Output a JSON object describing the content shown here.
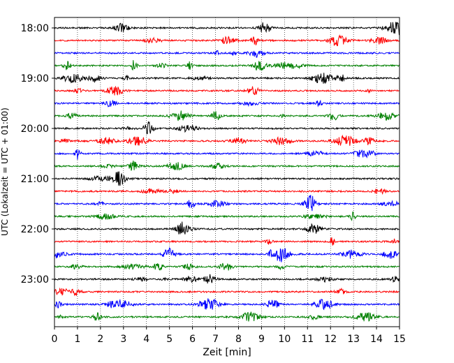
{
  "chart_data": {
    "type": "line",
    "title": "",
    "xlabel": "Zeit  [min]",
    "ylabel": "UTC (Lokalzeit = UTC + 01:00)",
    "xlim": [
      0,
      15
    ],
    "x_ticks": [
      "0",
      "1",
      "2",
      "3",
      "4",
      "5",
      "6",
      "7",
      "8",
      "9",
      "10",
      "11",
      "12",
      "13",
      "14",
      "15"
    ],
    "y_ticks": [
      {
        "label": "18:00",
        "trace": 0
      },
      {
        "label": "19:00",
        "trace": 4
      },
      {
        "label": "20:00",
        "trace": 8
      },
      {
        "label": "21:00",
        "trace": 12
      },
      {
        "label": "22:00",
        "trace": 16
      },
      {
        "label": "23:00",
        "trace": 20
      }
    ],
    "trace_interval_min": 15,
    "trace_count": 24,
    "color_cycle": [
      "#000000",
      "#ff0000",
      "#0000ff",
      "#008000"
    ],
    "grid": "vertical dotted lines at each minute",
    "legend": "none"
  }
}
